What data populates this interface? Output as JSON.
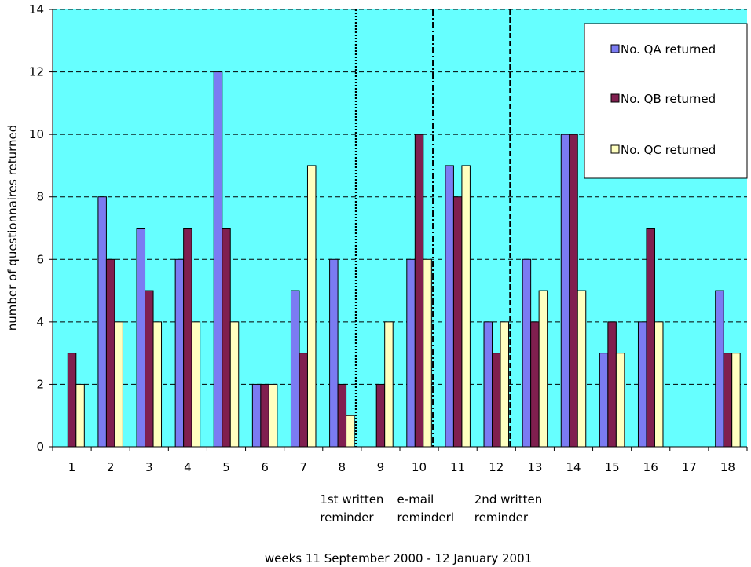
{
  "chart_data": {
    "type": "bar",
    "categories": [
      "1",
      "2",
      "3",
      "4",
      "5",
      "6",
      "7",
      "8",
      "9",
      "10",
      "11",
      "12",
      "13",
      "14",
      "15",
      "16",
      "17",
      "18"
    ],
    "series": [
      {
        "name": "No. QA returned",
        "color": "#7b7bf2",
        "values": [
          0,
          8,
          7,
          6,
          12,
          2,
          5,
          6,
          0,
          6,
          9,
          4,
          6,
          10,
          3,
          4,
          0,
          5
        ]
      },
      {
        "name": "No. QB returned",
        "color": "#801f4f",
        "values": [
          3,
          6,
          5,
          7,
          7,
          2,
          3,
          2,
          2,
          10,
          8,
          3,
          4,
          10,
          4,
          7,
          0,
          3
        ]
      },
      {
        "name": "No. QC returned",
        "color": "#ffffc0",
        "values": [
          2,
          4,
          4,
          4,
          4,
          2,
          9,
          1,
          4,
          6,
          9,
          4,
          5,
          5,
          3,
          4,
          0,
          3
        ]
      }
    ],
    "xlabel": "weeks 11 September 2000 - 12 January 2001",
    "ylabel": "number of questionnaires returned",
    "ylim": [
      0,
      14
    ],
    "yticks": [
      0,
      2,
      4,
      6,
      8,
      10,
      12,
      14
    ],
    "grid": true,
    "plot_background": "#66ffff",
    "legend_position": "top-right",
    "reminders": [
      {
        "after_category": "8",
        "line1": "1st written",
        "line2": "reminder",
        "style": "dotted"
      },
      {
        "after_category": "10",
        "line1": "e-mail",
        "line2": "reminderl",
        "style": "dash-dot"
      },
      {
        "after_category": "12",
        "line1": "2nd written",
        "line2": "reminder",
        "style": "dashed"
      }
    ]
  }
}
